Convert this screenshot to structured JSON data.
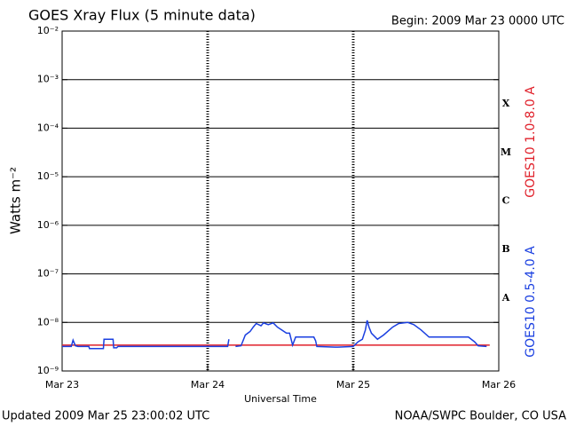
{
  "chart_data": {
    "type": "line",
    "title": "GOES Xray Flux (5 minute data)",
    "subtitle": "Begin:  2009 Mar 23 0000 UTC",
    "x_label": "Universal Time",
    "y_label": "Watts m⁻²",
    "footer_left": "Updated 2009 Mar 25 23:00:02 UTC",
    "footer_right": "NOAA/SWPC Boulder, CO USA",
    "log_y": true,
    "grid": true,
    "xlim": [
      0,
      72
    ],
    "xticks": [
      {
        "value": 0,
        "label": "Mar 23"
      },
      {
        "value": 24,
        "label": "Mar 24"
      },
      {
        "value": 48,
        "label": "Mar 25"
      },
      {
        "value": 72,
        "label": "Mar 26"
      }
    ],
    "ylim": [
      1e-09,
      0.01
    ],
    "yticks": [
      {
        "value": 1e-09,
        "label": "10⁻⁹"
      },
      {
        "value": 1e-08,
        "label": "10⁻⁸"
      },
      {
        "value": 1e-07,
        "label": "10⁻⁷"
      },
      {
        "value": 1e-06,
        "label": "10⁻⁶"
      },
      {
        "value": 1e-05,
        "label": "10⁻⁵"
      },
      {
        "value": 0.0001,
        "label": "10⁻⁴"
      },
      {
        "value": 0.001,
        "label": "10⁻³"
      },
      {
        "value": 0.01,
        "label": "10⁻²"
      }
    ],
    "flux_classes": [
      {
        "label": "A",
        "value": 1e-08
      },
      {
        "label": "B",
        "value": 1e-07
      },
      {
        "label": "C",
        "value": 1e-06
      },
      {
        "label": "M",
        "value": 1e-05
      },
      {
        "label": "X",
        "value": 0.0001
      }
    ],
    "series": [
      {
        "name": "GOES10 1.0-8.0 A",
        "color": "#e0202a",
        "x": [
          0,
          12,
          24,
          36,
          48,
          60,
          70.5
        ],
        "values": [
          3.4e-09,
          3.4e-09,
          3.4e-09,
          3.4e-09,
          3.4e-09,
          3.4e-09,
          3.4e-09
        ]
      },
      {
        "name": "GOES10 0.5-4.0 A",
        "color": "#1a3fe0",
        "x": [
          0,
          1.5,
          1.8,
          2.2,
          2.6,
          4.4,
          4.5,
          6.8,
          6.9,
          8.4,
          8.5,
          9.0,
          9.2,
          27.3,
          27.5,
          28.0,
          28.6,
          29.5,
          30.2,
          31.0,
          31.5,
          32.0,
          32.8,
          33.2,
          34.0,
          34.8,
          35.5,
          36.2,
          37.0,
          37.5,
          38.0,
          38.5,
          41.5,
          41.8,
          42.0,
          45.0,
          45.5,
          48.0,
          48.8,
          49.5,
          50.0,
          50.3,
          50.6,
          51.0,
          52.0,
          53.0,
          54.5,
          55.5,
          57.0,
          58.0,
          59.2,
          60.5,
          65.5,
          67.0,
          68.0,
          68.6,
          70
        ],
        "values": [
          3.2e-09,
          3.2e-09,
          4.3e-09,
          3.3e-09,
          3.2e-09,
          3.2e-09,
          2.9e-09,
          2.9e-09,
          4.5e-09,
          4.5e-09,
          3e-09,
          3e-09,
          3.2e-09,
          3.2e-09,
          4.5e-09,
          null,
          3.2e-09,
          3.3e-09,
          5.5e-09,
          6.5e-09,
          8e-09,
          9.5e-09,
          8.5e-09,
          9.8e-09,
          9e-09,
          9.8e-09,
          8e-09,
          7e-09,
          6e-09,
          6e-09,
          3.4e-09,
          5e-09,
          5e-09,
          4.2e-09,
          3.2e-09,
          3.1e-09,
          3.1e-09,
          3.2e-09,
          4e-09,
          4.5e-09,
          7e-09,
          1.1e-08,
          8e-09,
          6e-09,
          4.5e-09,
          5.5e-09,
          8e-09,
          9.5e-09,
          1e-08,
          9e-09,
          7e-09,
          5e-09,
          5e-09,
          5e-09,
          4e-09,
          3.3e-09,
          3.2e-09
        ]
      }
    ]
  }
}
